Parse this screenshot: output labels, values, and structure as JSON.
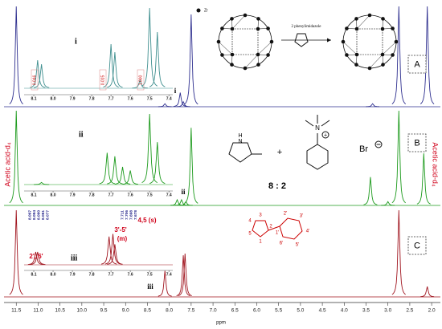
{
  "chart_data": {
    "type": "nmr",
    "x_label": "ppm",
    "xlim": [
      11.78,
      1.8
    ],
    "xticks": [
      11.5,
      {
        "value": 11,
        "label": "11.0"
      },
      10.5,
      {
        "value": 10,
        "label": "10.0"
      },
      9.5,
      {
        "value": 9,
        "label": "9.0"
      },
      8.5,
      {
        "value": 8,
        "label": "8.0"
      },
      7.5,
      {
        "value": 7,
        "label": "7.0"
      },
      6.5,
      {
        "value": 6,
        "label": "6.0"
      },
      5.5,
      {
        "value": 5,
        "label": "5.0"
      },
      4.5,
      {
        "value": 4,
        "label": "4.0"
      },
      3.5,
      {
        "value": 3,
        "label": "3.0"
      },
      2.5,
      {
        "value": 2,
        "label": "2.0"
      }
    ],
    "series": [
      {
        "name": "A",
        "color": "#2e2f8f",
        "x": [
          11.5,
          8.1,
          7.75,
          7.68,
          7.5,
          3.35,
          2.75,
          2.1
        ],
        "values": [
          100,
          3,
          14,
          5,
          92,
          3,
          100,
          100
        ]
      },
      {
        "name": "B",
        "color": "#1c9a1c",
        "x": [
          11.5,
          7.82,
          7.72,
          7.62,
          7.5,
          3.4,
          3.0,
          2.75,
          2.18
        ],
        "values": [
          100,
          6,
          6,
          4,
          82,
          30,
          4,
          100,
          55
        ]
      },
      {
        "name": "C",
        "color": "#a0141e",
        "x": [
          11.5,
          8.1,
          7.68,
          7.64,
          2.75,
          2.1
        ],
        "values": [
          100,
          30,
          48,
          50,
          100,
          12
        ]
      }
    ],
    "side_label": "Acetic acid-d₄",
    "peak_marks": [
      "i",
      "ii",
      "iii"
    ],
    "insets": [
      {
        "label": "i",
        "color": "#3f8f8f",
        "xlim": [
          8.15,
          7.38
        ],
        "xticks": [
          8.1,
          {
            "value": 8,
            "label": "8.0"
          },
          7.9,
          7.8,
          7.7,
          7.6,
          7.5,
          7.4
        ],
        "x": [
          8.08,
          8.06,
          7.7,
          7.68,
          7.55,
          7.5,
          7.46
        ],
        "values": [
          35,
          30,
          55,
          45,
          10,
          100,
          70
        ],
        "integrals": [
          "0.046",
          "0.015",
          "1.000"
        ]
      },
      {
        "label": "ii",
        "color": "#1c9a1c",
        "xlim": [
          8.15,
          7.38
        ],
        "xticks": [
          8.1,
          {
            "value": 8,
            "label": "8.0"
          },
          7.9,
          7.8,
          7.7,
          7.6,
          7.5,
          7.4
        ],
        "x": [
          8.06,
          7.72,
          7.68,
          7.64,
          7.6,
          7.5,
          7.46
        ],
        "values": [
          3,
          45,
          40,
          25,
          20,
          100,
          60
        ]
      },
      {
        "label": "iii",
        "color": "#a0141e",
        "xlim": [
          8.15,
          7.38
        ],
        "xticks": [
          8.1,
          {
            "value": 8,
            "label": "8.0"
          },
          7.9,
          7.8,
          7.7,
          7.6,
          7.5,
          7.4
        ],
        "x": [
          8.09,
          8.08,
          7.71,
          7.69,
          7.68
        ],
        "values": [
          25,
          25,
          55,
          60,
          40
        ],
        "peak_labels": [
          [
            "8.097",
            "8.094",
            "8.090",
            "8.081",
            "8.077"
          ],
          [
            "7.711",
            "7.706",
            "7.698",
            "7.678"
          ]
        ],
        "assignments": [
          "2', 6'",
          "3'-5'",
          "(m)",
          "4,5 (s)"
        ]
      }
    ],
    "structures": {
      "legend": "Zr",
      "reagent": "2 phenylimidazole",
      "ratio": "8 : 2",
      "counterion": "Br",
      "atoms": [
        "N",
        "H",
        "N"
      ],
      "ring_numbers": [
        "3",
        "2",
        "1",
        "4",
        "5",
        "1'",
        "2'",
        "3'",
        "4'",
        "5'",
        "6'"
      ]
    }
  }
}
